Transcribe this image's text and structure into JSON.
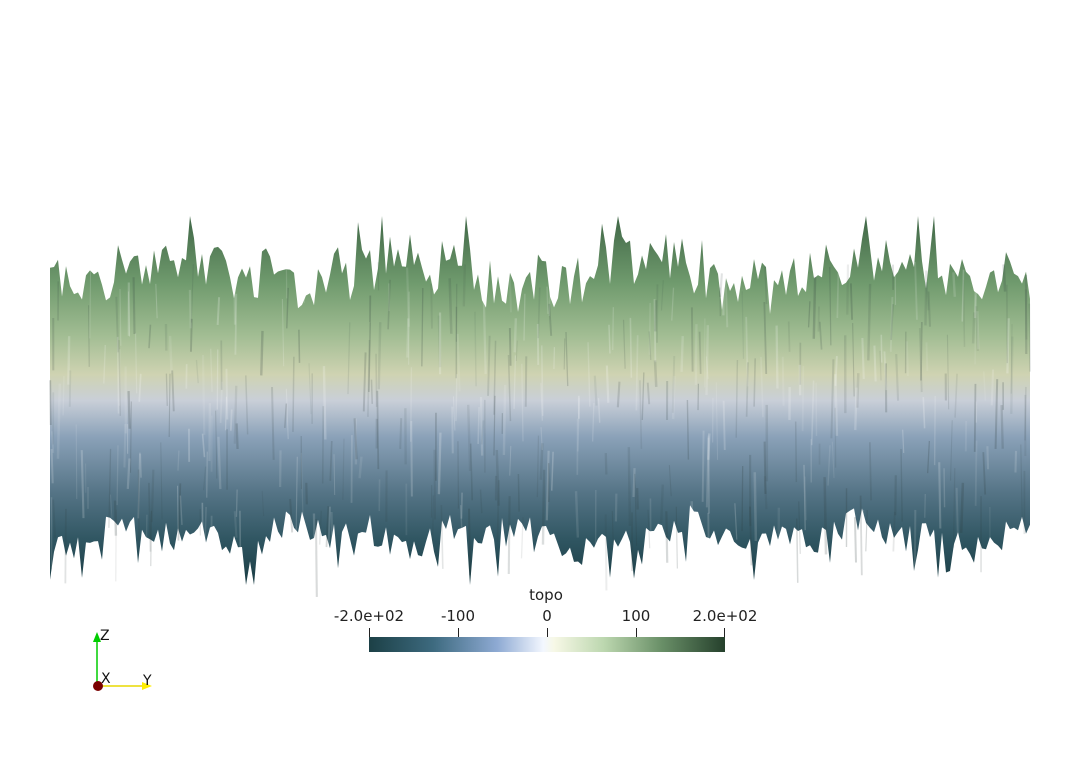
{
  "colorbar": {
    "title": "topo",
    "ticks": [
      "-2.0e+02",
      "-100",
      "0",
      "100",
      "2.0e+02"
    ],
    "range": [
      -200,
      200
    ],
    "colors": [
      "#1c4046",
      "#3d6a7f",
      "#8eaad3",
      "#f3f7ff",
      "#eef5d7",
      "#9cc08f",
      "#5e8660",
      "#25402c"
    ]
  },
  "orientation_axes": {
    "x_label": "X",
    "y_label": "Y",
    "z_label": "Z",
    "x_color": "#7a0000",
    "y_color": "#ffee00",
    "z_color": "#00cc00"
  },
  "surface": {
    "type": "topography-surface",
    "top_color": "#5e8a5e",
    "mid_color": "#c8cdb0",
    "low_color": "#7f97ad",
    "bottom_color": "#244a55"
  }
}
